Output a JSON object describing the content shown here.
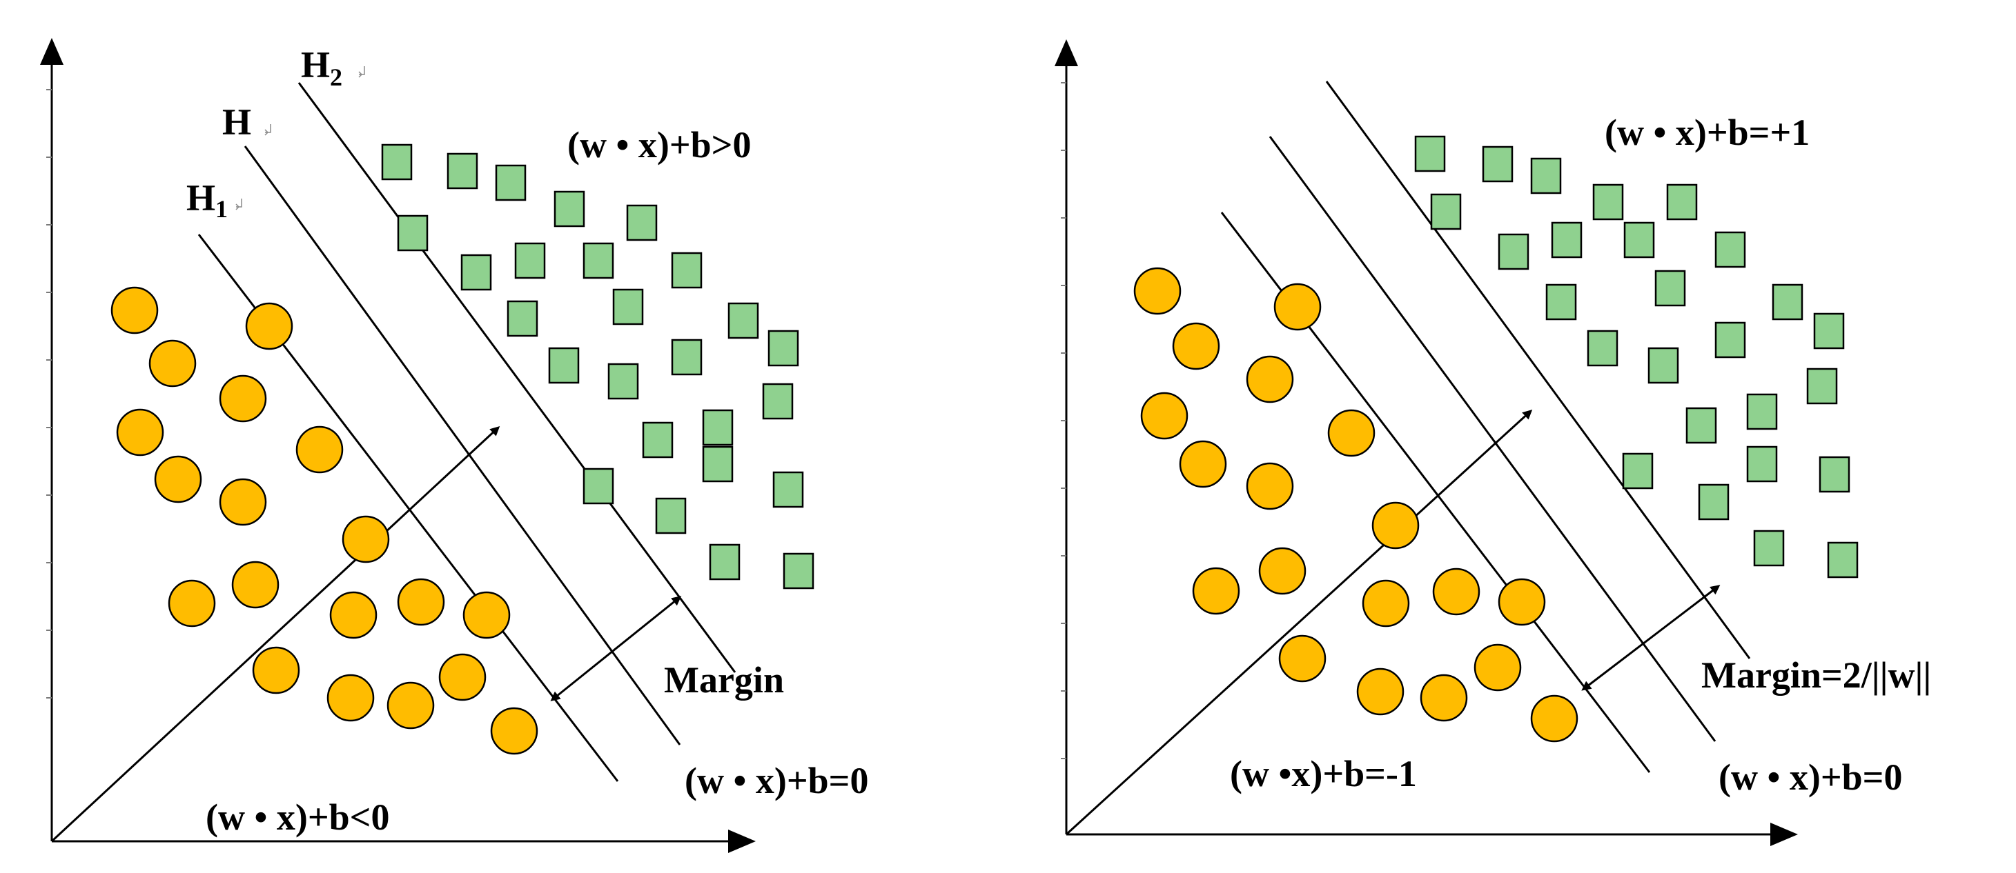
{
  "panels": [
    {
      "id": "left",
      "hyperplane_labels": {
        "h1": "H",
        "h1_sub": "1",
        "h": "H",
        "h2": "H",
        "h2_sub": "2"
      },
      "labels": {
        "positive_region": "(w • x)+b>0",
        "negative_region": "(w • x)+b<0",
        "hyperplane": "(w • x)+b=0",
        "margin": "Margin"
      }
    },
    {
      "id": "right",
      "labels": {
        "positive_margin": "(w • x)+b=+1",
        "negative_margin": "(w •x)+b=-1",
        "hyperplane": "(w • x)+b=0",
        "margin": "Margin=2/||w||"
      }
    }
  ],
  "colors": {
    "negative_class_fill": "#FFBC00",
    "positive_class_fill": "#8FD18F",
    "outline": "#000000"
  },
  "markers": {
    "negative_class_shape": "circle",
    "positive_class_shape": "square"
  }
}
